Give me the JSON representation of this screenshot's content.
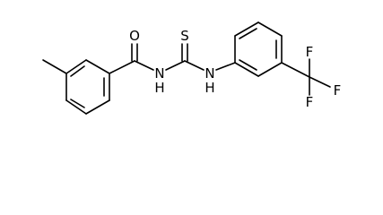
{
  "atoms": [
    "O",
    "N",
    "H",
    "S",
    "N",
    "H",
    "F",
    "F",
    "F"
  ]
}
